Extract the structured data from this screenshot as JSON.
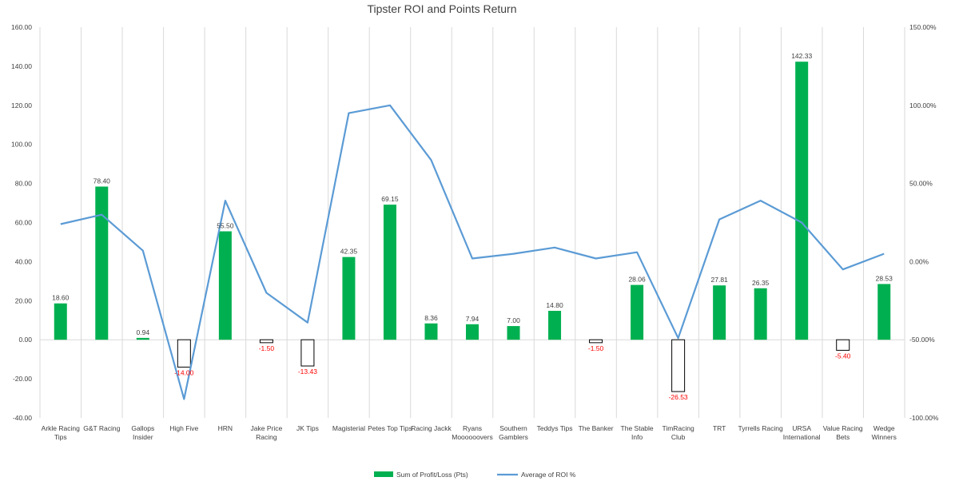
{
  "chart_data": {
    "type": "bar",
    "title": "Tipster ROI and Points Return",
    "categories": [
      [
        "Arkle Racing",
        "Tips"
      ],
      [
        "G&T Racing"
      ],
      [
        "Gallops",
        "Insider"
      ],
      [
        "High Five"
      ],
      [
        "HRN"
      ],
      [
        "Jake Price",
        "Racing"
      ],
      [
        "JK Tips"
      ],
      [
        "Magisterial"
      ],
      [
        "Petes Top Tips"
      ],
      [
        "Racing Jackk"
      ],
      [
        "Ryans",
        "Moooooovers"
      ],
      [
        "Southern",
        "Gamblers"
      ],
      [
        "Teddys Tips"
      ],
      [
        "The Banker"
      ],
      [
        "The Stable",
        "Info"
      ],
      [
        "TimRacing",
        "Club"
      ],
      [
        "TRT"
      ],
      [
        "Tyrrells Racing"
      ],
      [
        "URSA",
        "International"
      ],
      [
        "Value Racing",
        "Bets"
      ],
      [
        "Wedge",
        "Winners"
      ]
    ],
    "series": [
      {
        "name": "Sum of Profit/Loss (Pts)",
        "kind": "bar",
        "axis": "left",
        "color": "#00b050",
        "negative_fill": "#ffffff",
        "negative_stroke": "#000000",
        "values": [
          18.6,
          78.4,
          0.94,
          -14.0,
          55.5,
          -1.5,
          -13.43,
          42.35,
          69.15,
          8.36,
          7.94,
          7.0,
          14.8,
          -1.5,
          28.06,
          -26.53,
          27.81,
          26.35,
          142.33,
          -5.4,
          28.53
        ],
        "labels": [
          "18.60",
          "78.40",
          "0.94",
          "-14.00",
          "55.50",
          "-1.50",
          "-13.43",
          "42.35",
          "69.15",
          "8.36",
          "7.94",
          "7.00",
          "14.80",
          "-1.50",
          "28.06",
          "-26.53",
          "27.81",
          "26.35",
          "142.33",
          "-5.40",
          "28.53"
        ]
      },
      {
        "name": "Average of ROI %",
        "kind": "line",
        "axis": "right",
        "color": "#5b9bd5",
        "values": [
          24,
          30,
          7,
          -88,
          39,
          -20,
          -39,
          95,
          100,
          65,
          2,
          5,
          9,
          2,
          6,
          -49,
          27,
          39,
          25,
          -5,
          5
        ]
      }
    ],
    "left_axis": {
      "min": -40,
      "max": 160,
      "ticks": [
        160,
        140,
        120,
        100,
        80,
        60,
        40,
        20,
        0,
        -20,
        -40
      ],
      "tick_labels": [
        "160.00",
        "140.00",
        "120.00",
        "100.00",
        "80.00",
        "60.00",
        "40.00",
        "20.00",
        "0.00",
        "-20.00",
        "-40.00"
      ]
    },
    "right_axis": {
      "min": -100,
      "max": 150,
      "ticks": [
        150,
        100,
        50,
        0,
        -50,
        -100
      ],
      "tick_labels": [
        "150.00%",
        "100.00%",
        "50.00%",
        "0.00%",
        "-50.00%",
        "-100.00%"
      ]
    },
    "grid": "vertical category lines",
    "legend_position": "bottom",
    "positive_label_color": "#404040",
    "negative_label_color": "#ff0000"
  }
}
